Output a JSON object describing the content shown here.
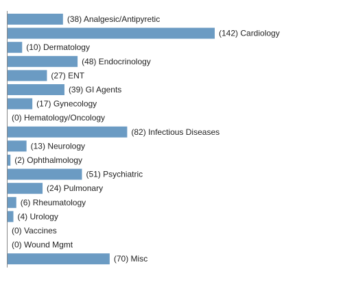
{
  "chart_data": {
    "type": "bar",
    "orientation": "horizontal",
    "title": "",
    "xlabel": "",
    "ylabel": "",
    "grid": false,
    "legend": "none",
    "bar_color": "#6b9bc3",
    "categories": [
      "Analgesic/Antipyretic",
      "Cardiology",
      "Dermatology",
      "Endocrinology",
      "ENT",
      "GI Agents",
      "Gynecology",
      "Hematology/Oncology",
      "Infectious Diseases",
      "Neurology",
      "Ophthalmology",
      "Psychiatric",
      "Pulmonary",
      "Rheumatology",
      "Urology",
      "Vaccines",
      "Wound Mgmt",
      "Misc"
    ],
    "values": [
      38,
      142,
      10,
      48,
      27,
      39,
      17,
      0,
      82,
      13,
      2,
      51,
      24,
      6,
      4,
      0,
      0,
      70
    ],
    "labels": [
      "(38) Analgesic/Antipyretic",
      "(142) Cardiology",
      "(10) Dermatology",
      "(48) Endocrinology",
      "(27) ENT",
      "(39) GI Agents",
      "(17) Gynecology",
      "(0) Hematology/Oncology",
      "(82) Infectious Diseases",
      "(13) Neurology",
      "(2) Ophthalmology",
      "(51) Psychiatric",
      "(24) Pulmonary",
      "(6) Rheumatology",
      "(4) Urology",
      "(0) Vaccines",
      "(0) Wound Mgmt",
      "(70) Misc"
    ],
    "xlim": [
      0,
      142
    ]
  }
}
